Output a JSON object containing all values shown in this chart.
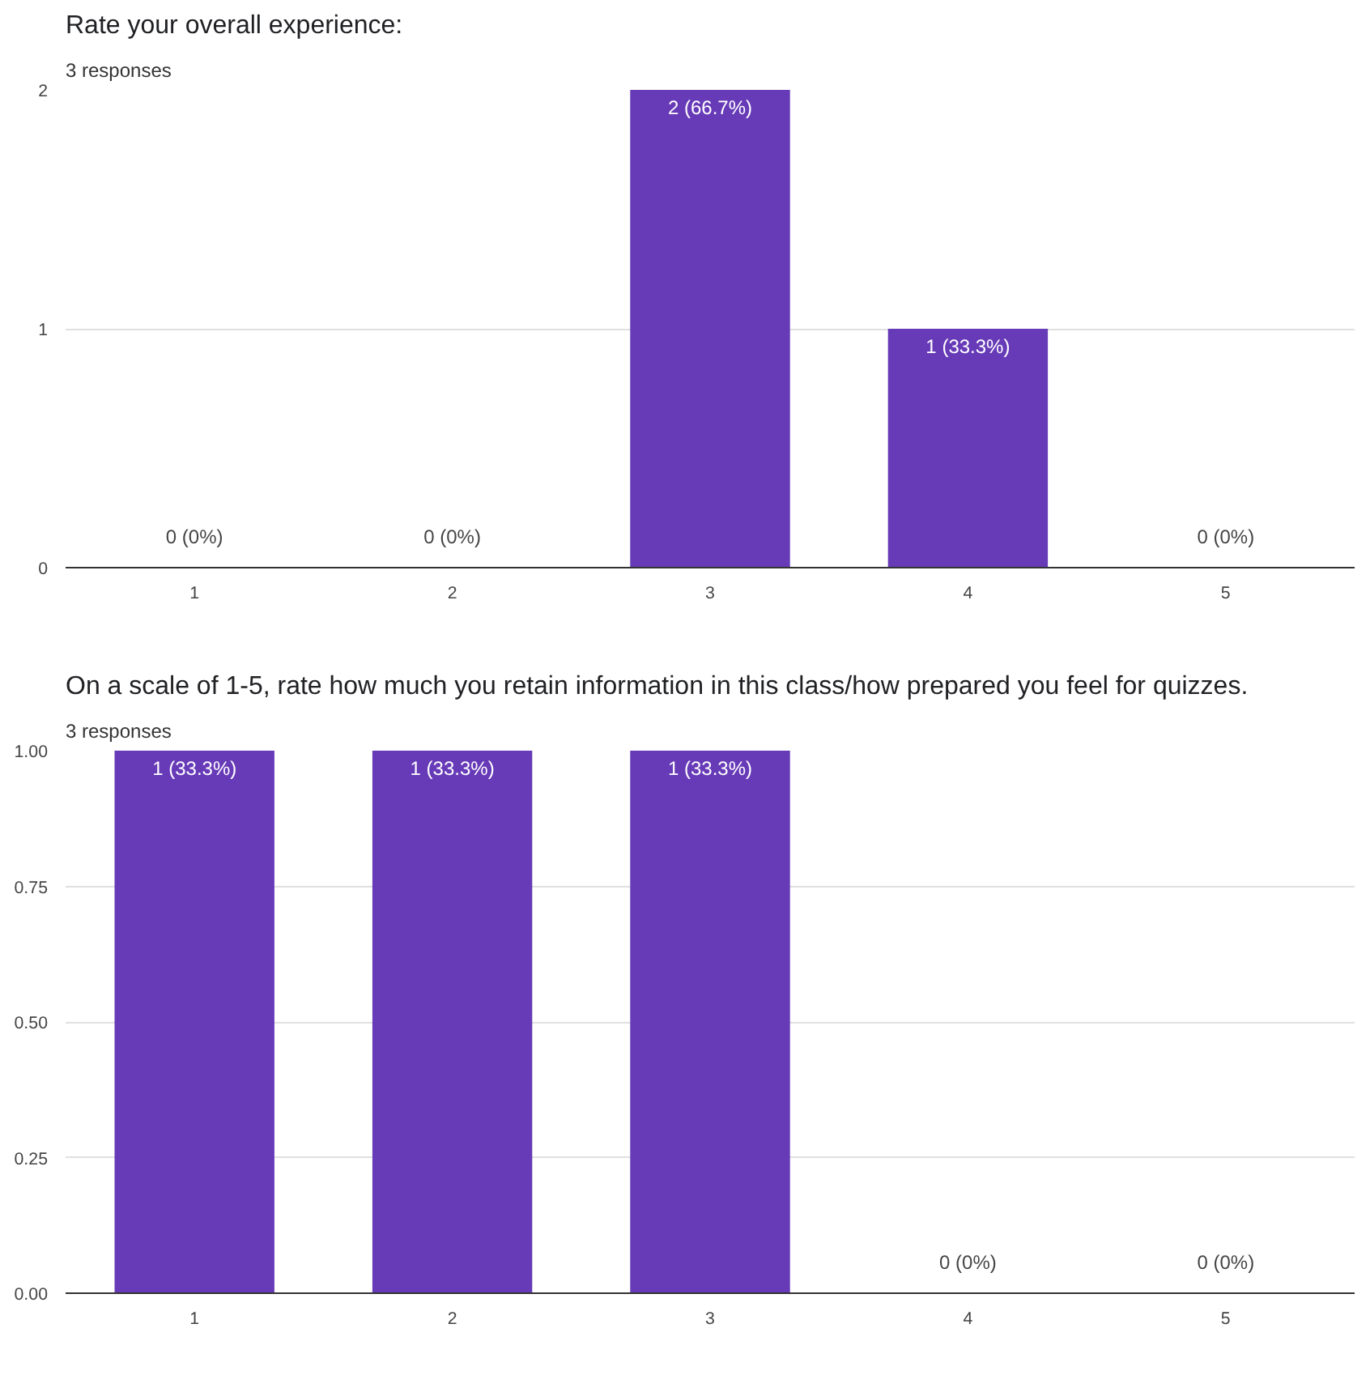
{
  "chart_data": [
    {
      "type": "bar",
      "title": "Rate your overall experience:",
      "subtitle": "3 responses",
      "categories": [
        "1",
        "2",
        "3",
        "4",
        "5"
      ],
      "values": [
        0,
        0,
        2,
        1,
        0
      ],
      "color": "#673ab7",
      "value_labels": [
        "0 (0%)",
        "0 (0%)",
        "2 (66.7%)",
        "1 (33.3%)",
        "0 (0%)"
      ],
      "ylim": [
        0,
        2
      ],
      "yticks": [
        0,
        1,
        2
      ],
      "grid": "y"
    },
    {
      "type": "bar",
      "title": "On a scale of 1-5, rate how much you retain information in this class/how prepared you feel for quizzes.",
      "subtitle": "3 responses",
      "categories": [
        "1",
        "2",
        "3",
        "4",
        "5"
      ],
      "values": [
        1,
        1,
        1,
        0,
        0
      ],
      "color": "#673ab7",
      "value_labels": [
        "1 (33.3%)",
        "1 (33.3%)",
        "1 (33.3%)",
        "0 (0%)",
        "0 (0%)"
      ],
      "ylim": [
        0,
        1
      ],
      "yticks": [
        {
          "value": 0,
          "label": "0.00"
        },
        {
          "value": 0.25,
          "label": "0.25"
        },
        {
          "value": 0.5,
          "label": "0.50"
        },
        {
          "value": 0.75,
          "label": "0.75"
        },
        {
          "value": 1,
          "label": "1.00"
        }
      ],
      "grid": "y"
    }
  ]
}
